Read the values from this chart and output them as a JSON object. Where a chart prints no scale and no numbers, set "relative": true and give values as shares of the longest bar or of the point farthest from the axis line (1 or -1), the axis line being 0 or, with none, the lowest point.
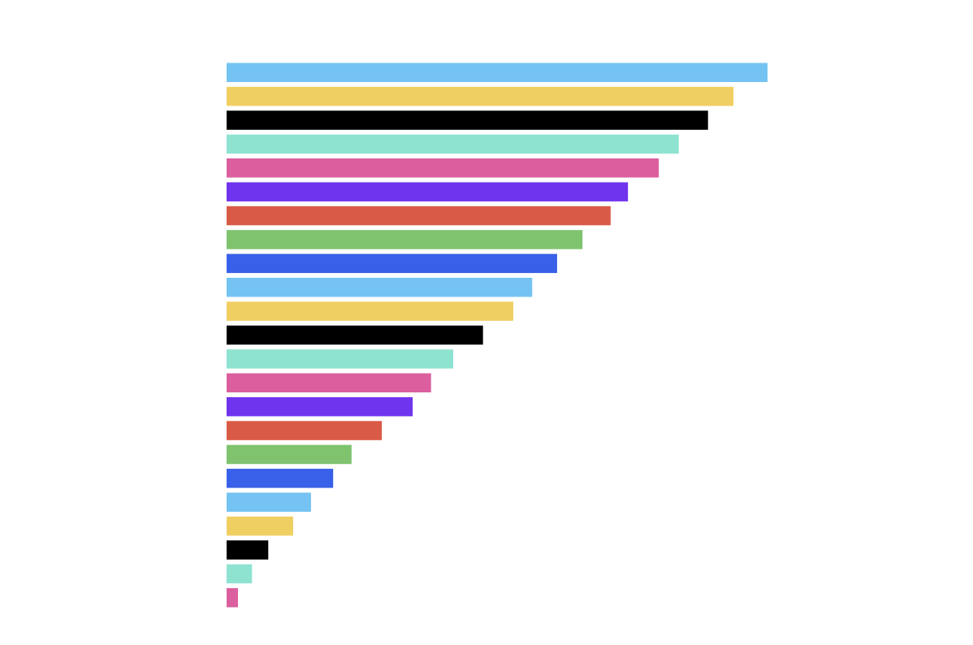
{
  "chart_data": {
    "type": "bar",
    "orientation": "horizontal",
    "relative": true,
    "categories": [
      null,
      null,
      null,
      null,
      null,
      null,
      null,
      null,
      null,
      null,
      null,
      null,
      null,
      null,
      null,
      null,
      null,
      null,
      null,
      null,
      null,
      null,
      null
    ],
    "values": [
      1,
      0.937,
      0.89,
      0.836,
      0.799,
      0.742,
      0.71,
      0.658,
      0.611,
      0.565,
      0.53,
      0.474,
      0.419,
      0.378,
      0.344,
      0.287,
      0.231,
      0.197,
      0.156,
      0.123,
      0.077,
      0.047,
      0.021
    ],
    "colors": [
      "#74c3f2",
      "#f0cf62",
      "#000000",
      "#8ee3d0",
      "#db5f9e",
      "#6f34ed",
      "#d95b47",
      "#7fc36f",
      "#3860e8",
      "#74c3f2",
      "#f0cf62",
      "#000000",
      "#8ee3d0",
      "#db5f9e",
      "#6f34ed",
      "#d95b47",
      "#7fc36f",
      "#3860e8",
      "#74c3f2",
      "#f0cf62",
      "#000000",
      "#8ee3d0",
      "#db5f9e"
    ]
  }
}
